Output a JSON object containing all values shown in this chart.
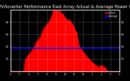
{
  "title": "Solar PV/Inverter Performance East Array Actual & Average Power Output",
  "title_fontsize": 3.8,
  "bg_color": "#000000",
  "plot_bg": "#000000",
  "fill_color": "#ff0000",
  "line_color": "#ff0000",
  "avg_line_color": "#0000ff",
  "avg_value": 0.38,
  "grid_color": "#ffffff",
  "num_points": 288,
  "seed": 7
}
